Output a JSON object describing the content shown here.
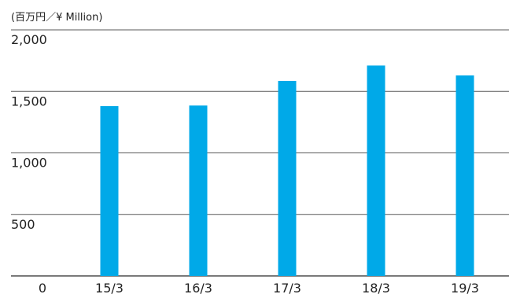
{
  "chart_data": {
    "type": "bar",
    "unit_label": "(百万円／¥ Million)",
    "categories": [
      "15/3",
      "16/3",
      "17/3",
      "18/3",
      "19/3"
    ],
    "values": [
      1380,
      1385,
      1585,
      1710,
      1630
    ],
    "ylim": [
      0,
      2000
    ],
    "yticks": [
      {
        "value": 2000,
        "label": "2,000"
      },
      {
        "value": 1500,
        "label": "1,500"
      },
      {
        "value": 1000,
        "label": "1,000"
      },
      {
        "value": 500,
        "label": "500"
      },
      {
        "value": 0,
        "label": "0"
      }
    ],
    "grid": true,
    "legend": "none",
    "bar_color": "#00a9e8"
  }
}
